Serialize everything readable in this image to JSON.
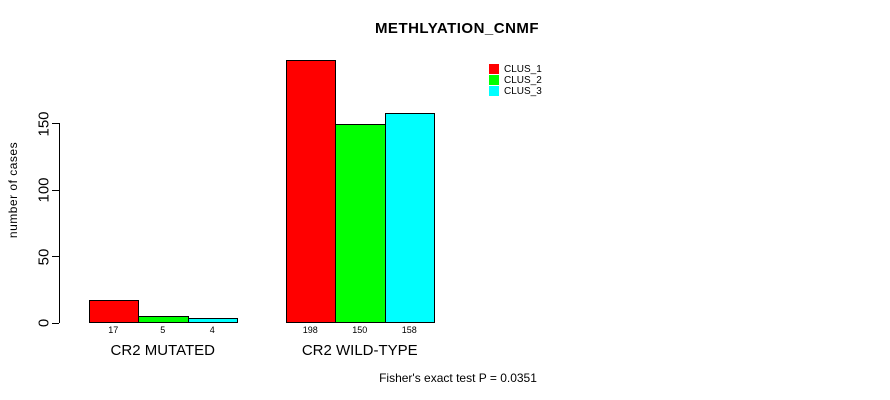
{
  "chart_data": {
    "type": "bar",
    "title": "METHLYATION_CNMF",
    "ylabel": "number of cases",
    "xlabel": "",
    "ylim": [
      0,
      150
    ],
    "yticks": [
      0,
      50,
      100,
      150
    ],
    "grid": false,
    "legend_position": "top-right",
    "categories": [
      "CR2 MUTATED",
      "CR2 WILD-TYPE"
    ],
    "series": [
      {
        "name": "CLUS_1",
        "color": "#FF0000",
        "values": [
          17,
          198
        ]
      },
      {
        "name": "CLUS_2",
        "color": "#00FF00",
        "values": [
          5,
          150
        ]
      },
      {
        "name": "CLUS_3",
        "color": "#00FFFF",
        "values": [
          4,
          158
        ]
      }
    ],
    "bar_value_labels": [
      [
        "17",
        "5",
        "4"
      ],
      [
        "198",
        "150",
        "158"
      ]
    ],
    "annotation": "Fisher's exact test P = 0.0351"
  }
}
